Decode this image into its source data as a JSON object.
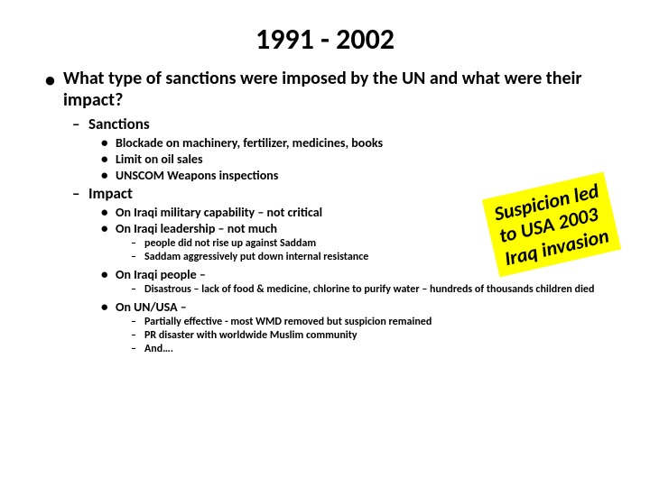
{
  "title": "1991 - 2002",
  "q": "What type of sanctions were imposed by the UN and what were their impact?",
  "sanctions": {
    "header": "Sanctions",
    "items": [
      "Blockade on machinery, fertilizer, medicines, books",
      "Limit on oil sales",
      "UNSCOM Weapons inspections"
    ]
  },
  "impact": {
    "header": "Impact",
    "military": "On Iraqi military capability – not critical",
    "leadership": "On Iraqi leadership – not much",
    "leadership_sub": [
      "people did not rise up against Saddam",
      "Saddam aggressively put down internal resistance"
    ],
    "people": "On Iraqi people –",
    "people_sub": [
      "Disastrous – lack of food & medicine, chlorine to purify water – hundreds of thousands children died"
    ],
    "unusa": "On UN/USA –",
    "unusa_sub": [
      "Partially effective -  most WMD removed but suspicion remained",
      "PR disaster with worldwide Muslim community",
      "And…."
    ]
  },
  "callout": {
    "line1": "Suspicion led",
    "line2": "to USA 2003",
    "line3": "Iraq invasion"
  },
  "colors": {
    "background": "#ffffff",
    "text": "#000000",
    "highlight_bg": "#ffff00"
  },
  "fonts": {
    "title_size": 32,
    "l1_size": 20,
    "l2_size": 17,
    "l3_size": 14,
    "l4_size": 12,
    "callout_size": 22
  }
}
